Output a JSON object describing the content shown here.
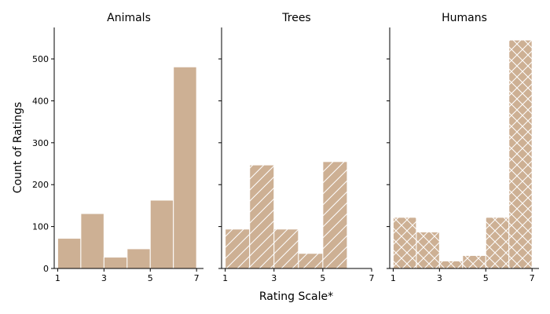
{
  "chart_data": {
    "type": "bar",
    "ylabel": "Count of Ratings",
    "xlabel": "Rating Scale*",
    "shared_ylim": [
      0,
      575
    ],
    "yticks": [
      0,
      100,
      200,
      300,
      400,
      500
    ],
    "bar_color": "#cdb094",
    "bar_edge_color": "#ffffff",
    "panels": [
      {
        "title": "Animals",
        "hatch": "none",
        "xlim": [
          0.85,
          7.3
        ],
        "xticks": [
          1,
          3,
          5,
          7
        ],
        "bins": [
          {
            "x0": 1.0,
            "x1": 2.0,
            "value": 72
          },
          {
            "x0": 2.0,
            "x1": 3.0,
            "value": 131
          },
          {
            "x0": 3.0,
            "x1": 4.0,
            "value": 27
          },
          {
            "x0": 4.0,
            "x1": 5.0,
            "value": 47
          },
          {
            "x0": 5.0,
            "x1": 6.0,
            "value": 163
          },
          {
            "x0": 6.0,
            "x1": 7.0,
            "value": 481
          }
        ]
      },
      {
        "title": "Trees",
        "hatch": "diagonal",
        "xlim": [
          0.85,
          7.0
        ],
        "xticks": [
          1,
          3,
          5,
          7
        ],
        "bins": [
          {
            "x0": 1.0,
            "x1": 2.0,
            "value": 94
          },
          {
            "x0": 2.0,
            "x1": 3.0,
            "value": 247
          },
          {
            "x0": 3.0,
            "x1": 4.0,
            "value": 94
          },
          {
            "x0": 4.0,
            "x1": 5.0,
            "value": 36
          },
          {
            "x0": 5.0,
            "x1": 6.0,
            "value": 255
          }
        ]
      },
      {
        "title": "Humans",
        "hatch": "cross",
        "xlim": [
          0.85,
          7.3
        ],
        "xticks": [
          1,
          3,
          5,
          7
        ],
        "bins": [
          {
            "x0": 1.0,
            "x1": 2.0,
            "value": 122
          },
          {
            "x0": 2.0,
            "x1": 3.0,
            "value": 87
          },
          {
            "x0": 3.0,
            "x1": 4.0,
            "value": 18
          },
          {
            "x0": 4.0,
            "x1": 5.0,
            "value": 31
          },
          {
            "x0": 5.0,
            "x1": 6.0,
            "value": 122
          },
          {
            "x0": 6.0,
            "x1": 7.0,
            "value": 545
          }
        ]
      }
    ]
  }
}
